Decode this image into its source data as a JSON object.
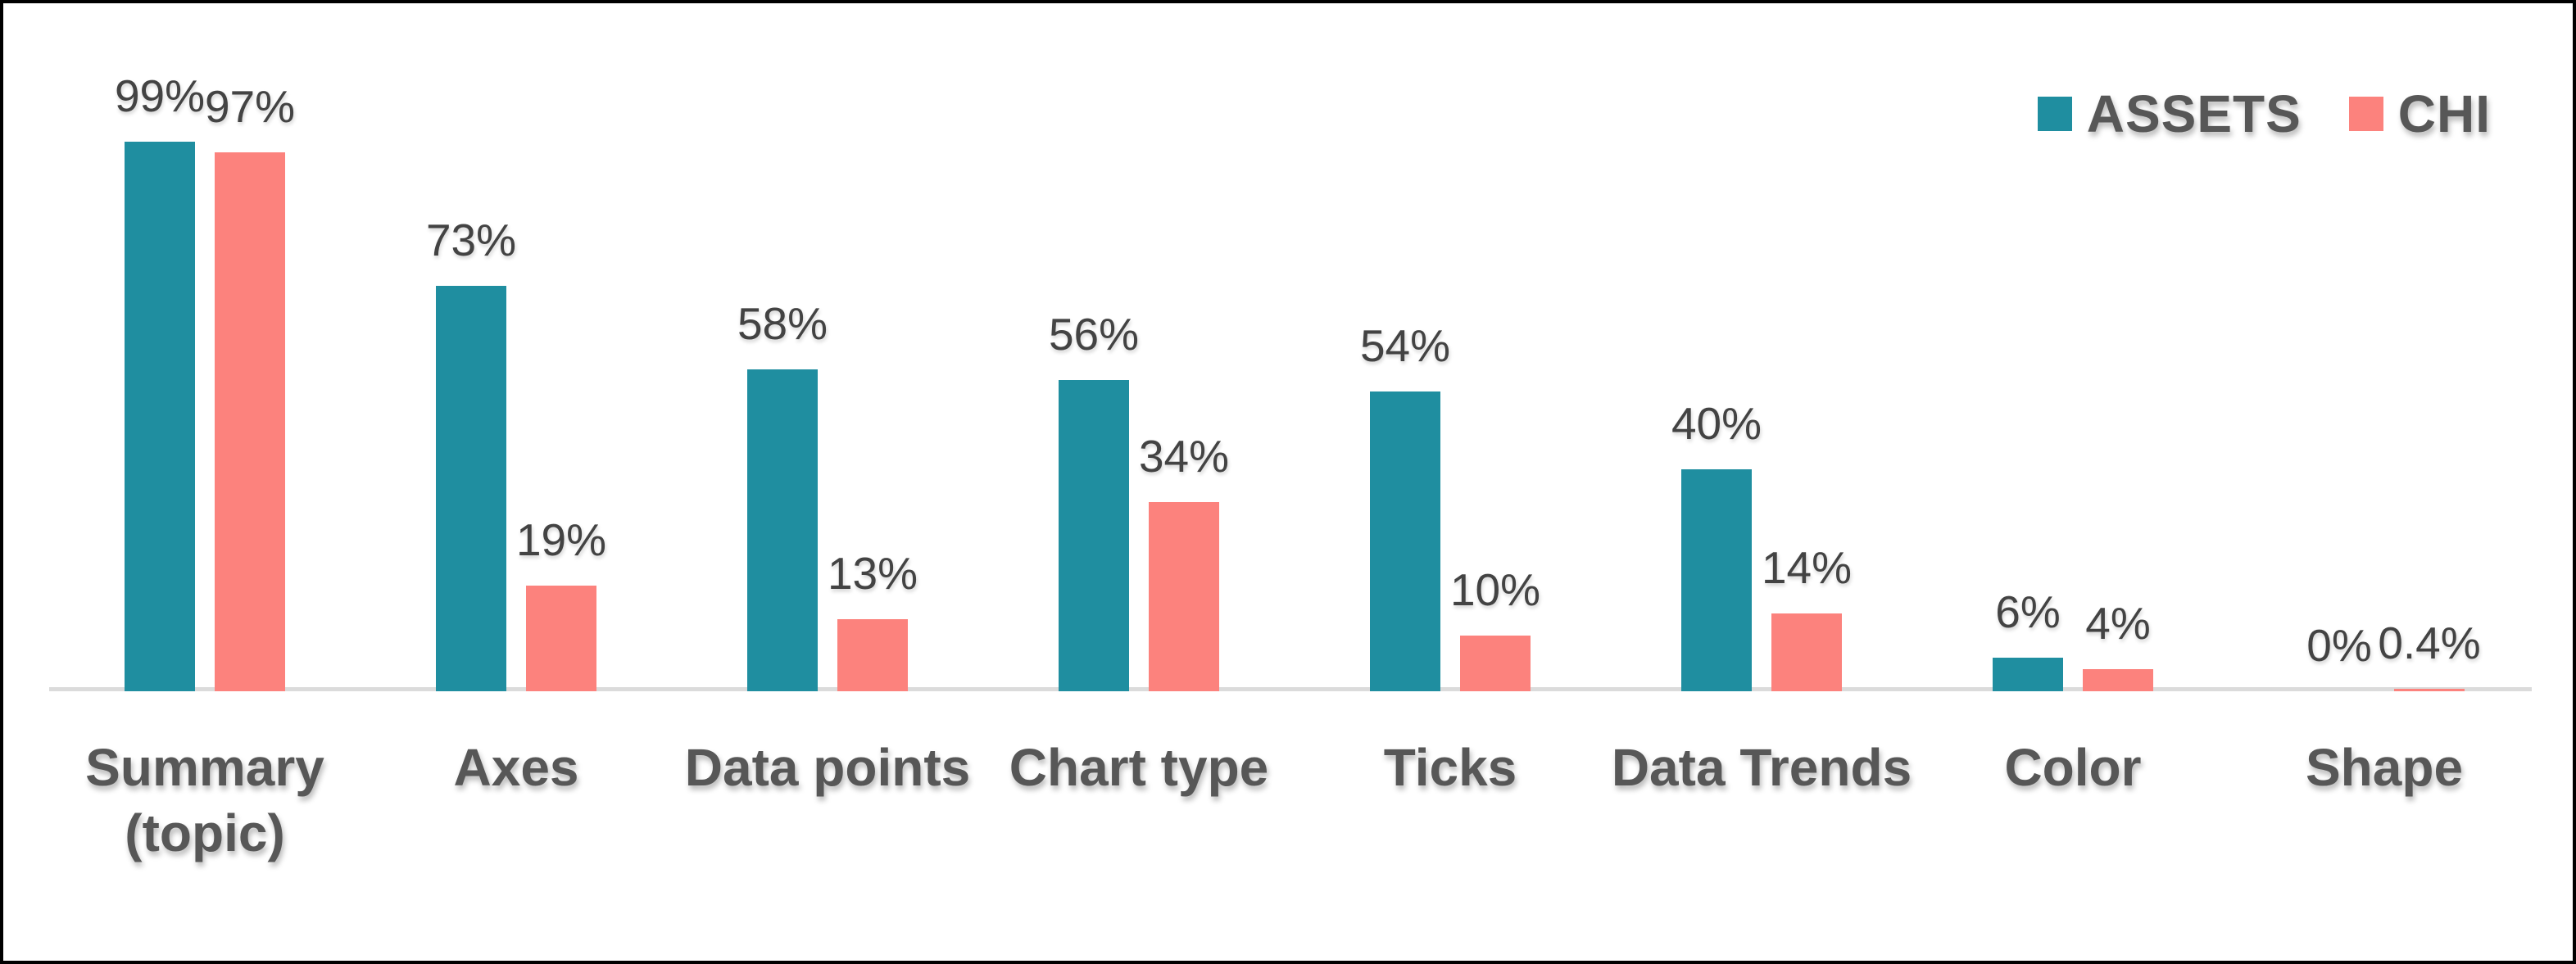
{
  "legend": {
    "items": [
      {
        "label": "ASSETS",
        "color": "#1F8EA0"
      },
      {
        "label": "CHI",
        "color": "#FC827D"
      }
    ]
  },
  "chart_data": {
    "type": "bar",
    "title": "",
    "xlabel": "",
    "ylabel": "",
    "ylim": [
      0,
      100
    ],
    "grid": false,
    "legend_position": "top-right",
    "value_labels_shown": true,
    "categories": [
      "Summary\n(topic)",
      "Axes",
      "Data points",
      "Chart type",
      "Ticks",
      "Data Trends",
      "Color",
      "Shape"
    ],
    "series": [
      {
        "name": "ASSETS",
        "color": "#1F8EA0",
        "values": [
          99,
          73,
          58,
          56,
          54,
          40,
          6,
          0
        ],
        "labels": [
          "99%",
          "73%",
          "58%",
          "56%",
          "54%",
          "40%",
          "6%",
          "0%"
        ]
      },
      {
        "name": "CHI",
        "color": "#FC827D",
        "values": [
          97,
          19,
          13,
          34,
          10,
          14,
          4,
          0.4
        ],
        "labels": [
          "97%",
          "19%",
          "13%",
          "34%",
          "10%",
          "14%",
          "4%",
          "0.4%"
        ]
      }
    ],
    "axis_line_color": "#DBDBDB"
  }
}
